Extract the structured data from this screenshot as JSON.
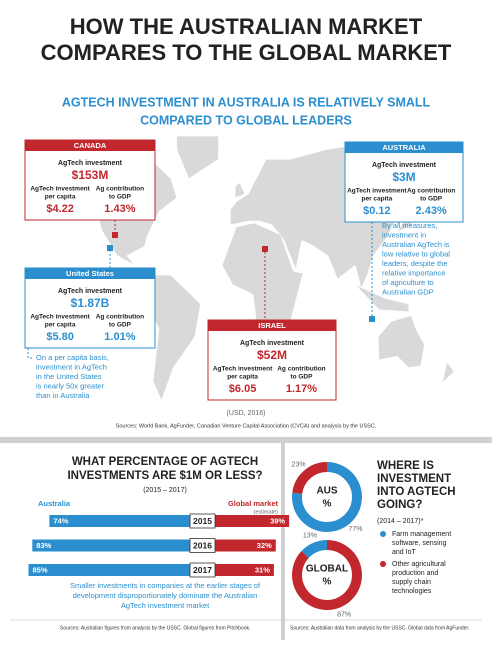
{
  "header": {
    "title": [
      "HOW THE AUSTRALIAN MARKET",
      "COMPARES TO THE GLOBAL MARKET"
    ],
    "subtitle": [
      "AGTECH INVESTMENT IN AUSTRALIA IS RELATIVELY SMALL",
      "COMPARED TO GLOBAL LEADERS"
    ]
  },
  "map": {
    "countries": [
      {
        "name": "CANADA",
        "invest_label": "AgTech investment",
        "invest": "$153M",
        "per_capita_label": [
          "AgTech investment",
          "per capita"
        ],
        "per_capita": "$4.22",
        "gdp_label": [
          "Ag contribution",
          "to GDP"
        ],
        "gdp": "1.43%"
      },
      {
        "name": "AUSTRALIA",
        "invest_label": "AgTech investment",
        "invest": "$3M",
        "per_capita_label": [
          "AgTech investment",
          "per capita"
        ],
        "per_capita": "$0.12",
        "gdp_label": [
          "Ag contribution",
          "to GDP"
        ],
        "gdp": "2.43%"
      },
      {
        "name": "United States",
        "invest_label": "AgTech investment",
        "invest": "$1.87B",
        "per_capita_label": [
          "AgTech investment",
          "per capita"
        ],
        "per_capita": "$5.80",
        "gdp_label": [
          "Ag contribution",
          "to GDP"
        ],
        "gdp": "1.01%"
      },
      {
        "name": "ISRAEL",
        "invest_label": "AgTech investment",
        "invest": "$52M",
        "per_capita_label": [
          "AgTech investment",
          "per capita"
        ],
        "per_capita": "$6.05",
        "gdp_label": [
          "Ag contribution",
          "to GDP"
        ],
        "gdp": "1.17%"
      }
    ],
    "australia_note": [
      "By all measures,",
      "investment in",
      "Australian AgTech is",
      "low relative to global",
      "leaders, despite the",
      "relative importance",
      "of agriculture to",
      "Australian GDP"
    ],
    "us_note": [
      "On a per capita basis,",
      "investment in AgTech",
      "in the United States",
      "is nearly 50x greater",
      "than in Australia"
    ],
    "currency": "(USD, 2016)",
    "sources": "Sources: World Bank, AgFunder, Canadian Venture Capital Association (CVCA) and analysis by the USSC."
  },
  "chart_data": [
    {
      "type": "bar",
      "title": [
        "WHAT PERCENTAGE OF AGTECH",
        "INVESTMENTS ARE $1M OR LESS?"
      ],
      "subtitle": "(2015 – 2017)",
      "categories": [
        "2015",
        "2016",
        "2017"
      ],
      "series": [
        {
          "name": "Australia",
          "color": "#2b8fcf",
          "values": [
            74,
            83,
            85
          ],
          "value_labels": [
            "74%",
            "83%",
            "85%"
          ]
        },
        {
          "name": "Global market",
          "note": "(estimate)",
          "color": "#c1272d",
          "values": [
            39,
            32,
            31
          ],
          "value_labels": [
            "39%",
            "32%",
            "31%"
          ]
        }
      ],
      "caption": [
        "Smaller investments in companies at the earlier stages of",
        "development disproportionately dominate the Australian",
        "AgTech investment market"
      ],
      "sources": "Sources: Australian figures from analysis by the USSC. Global figures from Pitchbook."
    },
    {
      "type": "donut",
      "title": [
        "WHERE IS",
        "INVESTMENT",
        "INTO AGTECH",
        "GOING?"
      ],
      "subtitle": "(2014 – 2017)*",
      "categories": [
        "AUS",
        "GLOBAL"
      ],
      "center_unit": "%",
      "series": [
        {
          "name": "Farm management software, sensing and IoT",
          "legend_lines": [
            "Farm management",
            "software, sensing",
            "and IoT"
          ],
          "color": "#2b8fcf",
          "values": [
            77,
            13
          ],
          "value_labels": [
            "77%",
            "13%"
          ]
        },
        {
          "name": "Other agricultural production and supply chain technologies",
          "legend_lines": [
            "Other agricultural",
            "production and",
            "supply chain",
            "technologies"
          ],
          "color": "#c1272d",
          "values": [
            23,
            87
          ],
          "value_labels": [
            "23%",
            "87%"
          ]
        }
      ],
      "sources": "Sources: Australian data from analysis by the USSC. Global data from AgFunder."
    }
  ]
}
